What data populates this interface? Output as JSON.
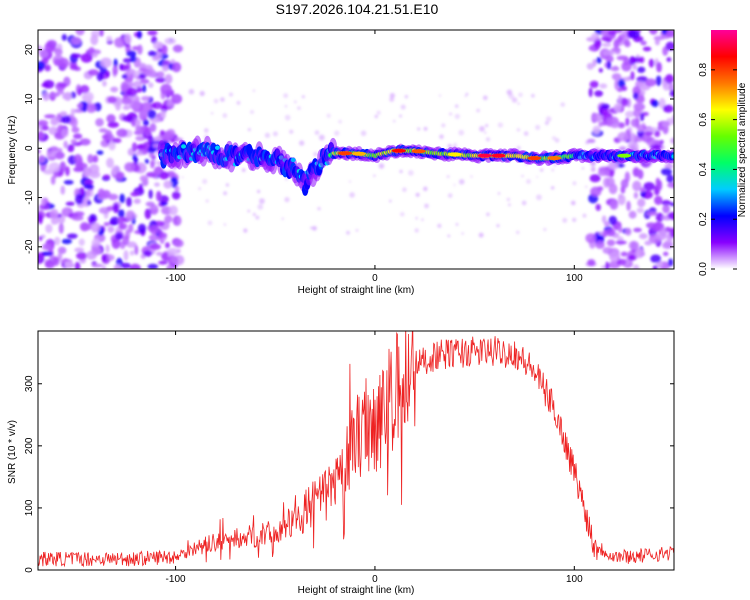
{
  "title": "S197.2026.104.21.51.E10",
  "chart_data": [
    {
      "type": "heatmap",
      "name": "spectrogram",
      "xlabel": "Height of straight line (km)",
      "ylabel": "Frequency (Hz)",
      "xlim": [
        -169,
        150
      ],
      "ylim": [
        -24.5,
        24
      ],
      "xticks": [
        -100,
        0,
        100
      ],
      "yticks": [
        -20,
        -10,
        0,
        10,
        20
      ],
      "colorbar": {
        "label": "Normalized spectral amplitude",
        "range": [
          0.0,
          0.96
        ],
        "ticks": [
          0.0,
          0.2,
          0.4,
          0.6,
          0.8
        ],
        "tick_labels": [
          "0.0",
          "0.2",
          "0.4",
          "0.6",
          "0.8"
        ],
        "colors": [
          "#ffffff",
          "#8800ff",
          "#0000ff",
          "#00ccff",
          "#00ff66",
          "#66ff00",
          "#ffff00",
          "#ff7700",
          "#ff0000",
          "#ff0099"
        ]
      },
      "noise_regions_x": [
        [
          -169,
          -98
        ],
        [
          108,
          150
        ]
      ],
      "ridge": {
        "x": [
          -107,
          -100,
          -90,
          -80,
          -70,
          -60,
          -50,
          -40,
          -35,
          -30,
          -25,
          -20,
          -10,
          0,
          10,
          20,
          30,
          50,
          70,
          80,
          90,
          100,
          110,
          120,
          130,
          140,
          150
        ],
        "freq": [
          -1.5,
          -1.5,
          -0.5,
          -1.0,
          -2.0,
          -1.5,
          -2.5,
          -4.0,
          -7.0,
          -4.0,
          -2.0,
          -1.0,
          -1.0,
          -1.5,
          -0.5,
          -0.5,
          -1.0,
          -1.5,
          -1.5,
          -2.0,
          -2.0,
          -1.5,
          -1.5,
          -1.5,
          -1.5,
          -1.5,
          -1.5
        ],
        "amp": [
          0.18,
          0.3,
          0.3,
          0.28,
          0.3,
          0.28,
          0.3,
          0.25,
          0.22,
          0.3,
          0.55,
          0.6,
          0.62,
          0.6,
          0.66,
          0.62,
          0.58,
          0.66,
          0.68,
          0.6,
          0.55,
          0.5,
          0.35,
          0.32,
          0.28,
          0.28,
          0.28
        ]
      }
    },
    {
      "type": "line",
      "name": "snr",
      "xlabel": "Height of straight line (km)",
      "ylabel": "SNR (10 * v/v)",
      "xlim": [
        -169,
        150
      ],
      "ylim": [
        0,
        385
      ],
      "xticks": [
        -100,
        0,
        100
      ],
      "yticks": [
        0,
        100,
        200,
        300
      ],
      "color": "#ee2222",
      "series": [
        {
          "name": "SNR envelope",
          "x": [
            -169,
            -120,
            -100,
            -90,
            -80,
            -60,
            -50,
            -40,
            -30,
            -20,
            -15,
            -10,
            -5,
            0,
            5,
            10,
            20,
            30,
            40,
            60,
            70,
            80,
            90,
            100,
            110,
            120,
            130,
            150
          ],
          "y": [
            18,
            18,
            22,
            35,
            45,
            55,
            60,
            80,
            110,
            130,
            165,
            210,
            240,
            240,
            255,
            280,
            330,
            345,
            350,
            352,
            350,
            320,
            260,
            160,
            40,
            22,
            22,
            28
          ]
        }
      ]
    }
  ]
}
